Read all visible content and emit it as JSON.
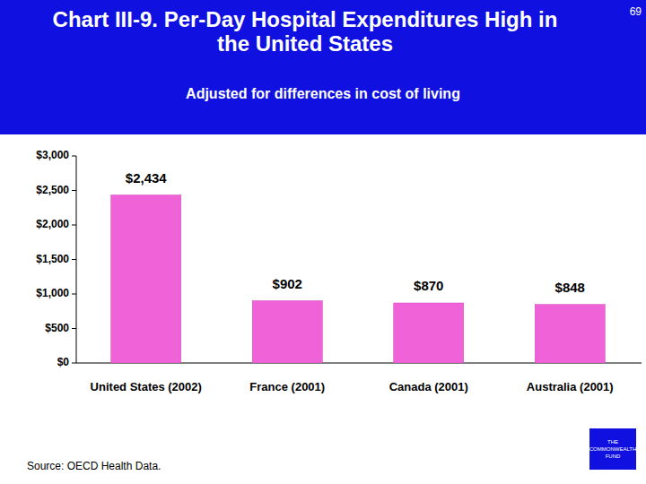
{
  "chart_data": {
    "type": "bar",
    "title": "Chart III-9. Per-Day Hospital Expenditures High in the United States",
    "subtitle": "Adjusted for differences in cost of living",
    "categories": [
      "United States (2002)",
      "France (2001)",
      "Canada (2001)",
      "Australia (2001)"
    ],
    "values": [
      2434,
      902,
      870,
      848
    ],
    "value_labels": [
      "$2,434",
      "$902",
      "$870",
      "$848"
    ],
    "color": "#f062d8",
    "ylim": [
      0,
      3000
    ],
    "yticks": [
      {
        "value": 0,
        "label": "$0"
      },
      {
        "value": 500,
        "label": "$500"
      },
      {
        "value": 1000,
        "label": "$1,000"
      },
      {
        "value": 1500,
        "label": "$1,500"
      },
      {
        "value": 2000,
        "label": "$2,000"
      },
      {
        "value": 2500,
        "label": "$2,500"
      },
      {
        "value": 3000,
        "label": "$3,000"
      }
    ],
    "grid": false,
    "data_labels": true,
    "source": "Source: OECD Health Data.",
    "page_number": "69",
    "logo": "THE COMMONWEALTH FUND"
  }
}
